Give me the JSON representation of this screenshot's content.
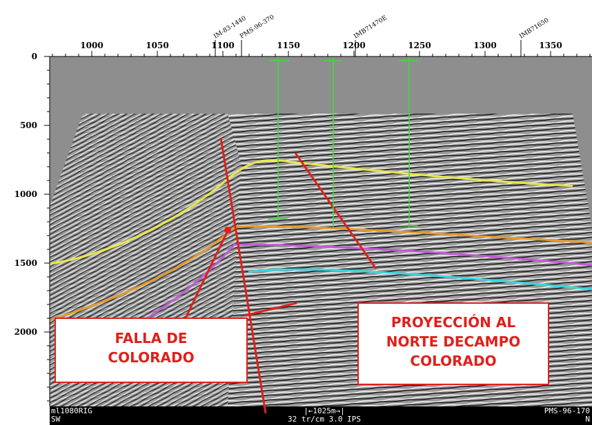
{
  "axes": {
    "top_ticks": [
      1000,
      1050,
      1100,
      1150,
      1200,
      1250,
      1300,
      1350
    ],
    "left_ticks": [
      0,
      500,
      1000,
      1500,
      2000
    ]
  },
  "wells": [
    "IM-83-1440",
    "PMS-96-370",
    "IMB71470E",
    "IMB71650"
  ],
  "annotations": {
    "left": [
      "FALLA DE",
      "COLORADO"
    ],
    "right": [
      "PROYECCIÓN AL",
      "NORTE DECAMPO",
      "COLORADO"
    ]
  },
  "footer": {
    "line_name": "ml1080RIG",
    "left_dir": "SW",
    "scale_bar": "|←1025m→|",
    "scale": "32 tr/cm 3.0 IPS",
    "right_name": "PMS-96-170",
    "right_dir": "N"
  }
}
